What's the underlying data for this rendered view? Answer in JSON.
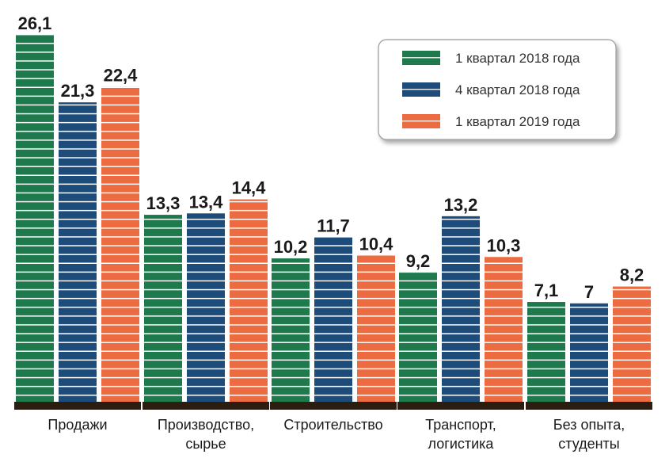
{
  "chart_data": {
    "type": "bar",
    "categories": [
      [
        "Продажи"
      ],
      [
        "Производство,",
        "сырье"
      ],
      [
        "Строительство"
      ],
      [
        "Транспорт,",
        "логистика"
      ],
      [
        "Без опыта,",
        "студенты"
      ]
    ],
    "series": [
      {
        "name": "1 квартал 2018 года",
        "color": "#1e7a4d",
        "values": [
          26.1,
          13.3,
          10.2,
          9.2,
          7.1
        ],
        "labels": [
          "26,1",
          "13,3",
          "10,2",
          "9,2",
          "7,1"
        ]
      },
      {
        "name": "4 квартал 2018 года",
        "color": "#1d4b7a",
        "values": [
          21.3,
          13.4,
          11.7,
          13.2,
          7.0
        ],
        "labels": [
          "21,3",
          "13,4",
          "11,7",
          "13,2",
          "7"
        ]
      },
      {
        "name": "1 квартал 2019 года",
        "color": "#ec6b40",
        "values": [
          22.4,
          14.4,
          10.4,
          10.3,
          8.2
        ],
        "labels": [
          "22,4",
          "14,4",
          "10,4",
          "10,3",
          "8,2"
        ]
      }
    ],
    "legend_position": "top-right",
    "grid": false,
    "ylim": [
      0,
      26.1
    ]
  }
}
